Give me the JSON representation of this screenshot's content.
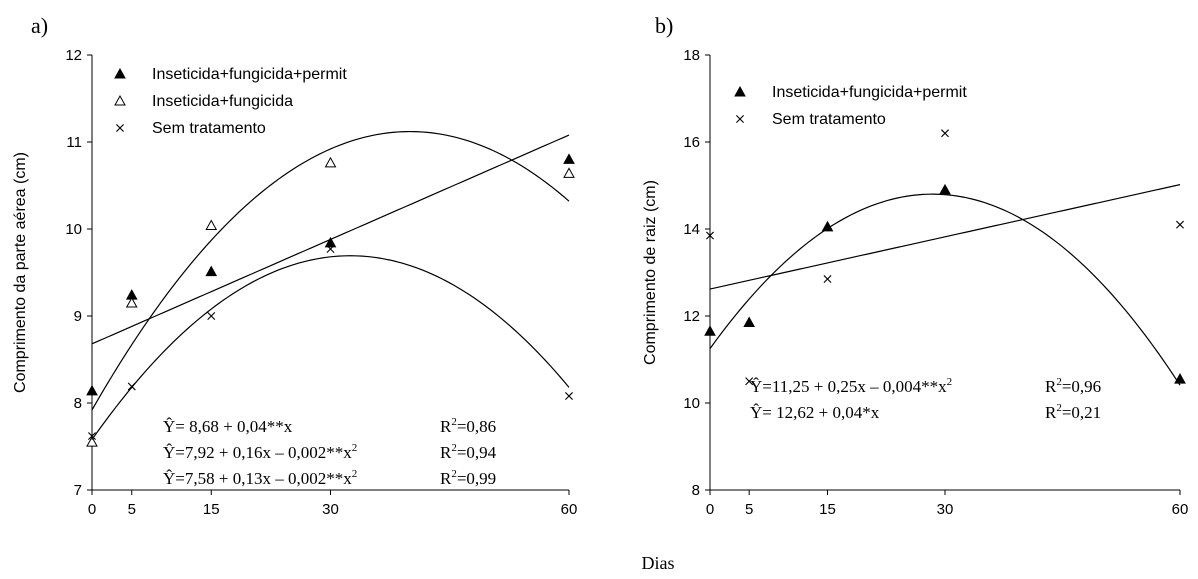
{
  "figure": {
    "shared_xlabel": "Dias"
  },
  "chart_data": [
    {
      "type": "scatter",
      "panel_label": "a)",
      "ylabel": "Comprimento da parte aérea (cm)",
      "xlabel": "",
      "x_ticks": [
        0,
        5,
        15,
        30,
        60
      ],
      "y_ticks": [
        7,
        8,
        9,
        10,
        11,
        12
      ],
      "xlim": [
        0,
        60
      ],
      "ylim": [
        7,
        12
      ],
      "grid": false,
      "legend_position": "top-left",
      "series": [
        {
          "name": "Inseticida+fungicida+permit",
          "marker": "triangle-filled",
          "x": [
            0,
            5,
            15,
            30,
            60
          ],
          "y": [
            8.14,
            9.24,
            9.51,
            9.84,
            10.8
          ],
          "fit": {
            "type": "linear",
            "coef": [
              8.68,
              0.04
            ]
          }
        },
        {
          "name": "Inseticida+fungicida",
          "marker": "triangle-open",
          "x": [
            0,
            5,
            15,
            30,
            60
          ],
          "y": [
            7.55,
            9.15,
            10.04,
            10.76,
            10.64
          ],
          "fit": {
            "type": "quadratic",
            "coef": [
              7.92,
              0.16,
              -0.002
            ]
          }
        },
        {
          "name": "Sem tratamento",
          "marker": "cross",
          "x": [
            0,
            5,
            15,
            30,
            60
          ],
          "y": [
            7.62,
            8.19,
            9.0,
            9.77,
            8.08
          ],
          "fit": {
            "type": "quadratic",
            "coef": [
              7.58,
              0.13,
              -0.002
            ]
          }
        }
      ],
      "equations": [
        {
          "eq": "Ŷ= 8,68 + 0,04**x",
          "r2": "=0,86"
        },
        {
          "eq": "Ŷ=7,92 + 0,16x – 0,002**x",
          "r2": "=0,94"
        },
        {
          "eq": "Ŷ=7,58 + 0,13x – 0,002**x",
          "r2": "=0,99"
        }
      ]
    },
    {
      "type": "scatter",
      "panel_label": "b)",
      "ylabel": "Comprimento de raiz (cm)",
      "xlabel": "",
      "x_ticks": [
        0,
        5,
        15,
        30,
        60
      ],
      "y_ticks": [
        8,
        10,
        12,
        14,
        16,
        18
      ],
      "xlim": [
        0,
        60
      ],
      "ylim": [
        8,
        18
      ],
      "grid": false,
      "legend_position": "top-left",
      "series": [
        {
          "name": "Inseticida+fungicida+permit",
          "marker": "triangle-filled",
          "x": [
            0,
            5,
            15,
            30,
            60
          ],
          "y": [
            11.65,
            11.85,
            14.05,
            14.9,
            10.55
          ],
          "fit": {
            "type": "quadratic",
            "coef": [
              11.25,
              0.25,
              -0.0044
            ]
          }
        },
        {
          "name": "Sem tratamento",
          "marker": "cross",
          "x": [
            0,
            5,
            15,
            30,
            60
          ],
          "y": [
            13.85,
            10.5,
            12.85,
            16.2,
            14.1
          ],
          "fit": {
            "type": "linear",
            "coef": [
              12.62,
              0.04
            ]
          }
        }
      ],
      "equations": [
        {
          "eq": "Ŷ=11,25 + 0,25x – 0,004**x",
          "r2": "=0,96"
        },
        {
          "eq": "Ŷ= 12,62 + 0,04*x",
          "r2": "=0,21"
        }
      ]
    }
  ]
}
